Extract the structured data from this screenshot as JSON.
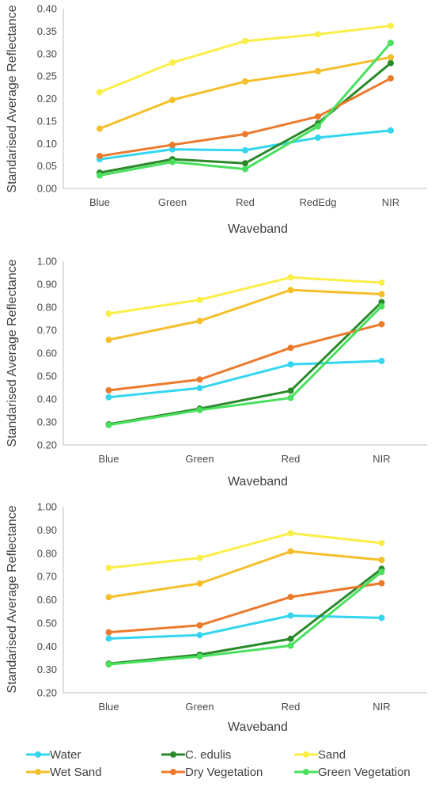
{
  "legend": [
    {
      "name": "Water",
      "color": "#33d6ee"
    },
    {
      "name": "C. edulis",
      "color": "#2a8a2a"
    },
    {
      "name": "Sand",
      "color": "#fbee47"
    },
    {
      "name": "Wet Sand",
      "color": "#f5bf2a"
    },
    {
      "name": "Dry Vegetation",
      "color": "#ec7a2c"
    },
    {
      "name": "Green Vegetation",
      "color": "#49e05e"
    }
  ],
  "chart_data": [
    {
      "type": "line",
      "xlabel": "Waveband",
      "ylabel": "Standarised Average Reflectance",
      "ylim": [
        0.0,
        0.4
      ],
      "ytick_step": 0.05,
      "ytick_labels": [
        "0.00",
        "0.05",
        "0.10",
        "0.15",
        "0.20",
        "0.25",
        "0.30",
        "0.35",
        "0.40"
      ],
      "grid": false,
      "categories": [
        "Blue",
        "Green",
        "Red",
        "RedEdg",
        "NIR"
      ],
      "series": [
        {
          "name": "Water",
          "values": [
            0.065,
            0.087,
            0.085,
            0.113,
            0.129
          ]
        },
        {
          "name": "C. edulis",
          "values": [
            0.035,
            0.065,
            0.056,
            0.145,
            0.279
          ]
        },
        {
          "name": "Sand",
          "values": [
            0.214,
            0.28,
            0.328,
            0.343,
            0.362
          ]
        },
        {
          "name": "Wet Sand",
          "values": [
            0.133,
            0.197,
            0.238,
            0.261,
            0.292
          ]
        },
        {
          "name": "Dry Vegetation",
          "values": [
            0.072,
            0.097,
            0.121,
            0.16,
            0.245
          ]
        },
        {
          "name": "Green Vegetation",
          "values": [
            0.029,
            0.059,
            0.043,
            0.138,
            0.324
          ]
        }
      ]
    },
    {
      "type": "line",
      "xlabel": "Waveband",
      "ylabel": "Standarised Average Reflectance",
      "ylim": [
        0.2,
        1.0
      ],
      "ytick_step": 0.1,
      "ytick_labels": [
        "0.20",
        "0.30",
        "0.40",
        "0.50",
        "0.60",
        "0.70",
        "0.80",
        "0.90",
        "1.00"
      ],
      "grid": false,
      "categories": [
        "Blue",
        "Green",
        "Red",
        "NIR"
      ],
      "series": [
        {
          "name": "Water",
          "values": [
            0.408,
            0.448,
            0.551,
            0.566
          ]
        },
        {
          "name": "C. edulis",
          "values": [
            0.29,
            0.358,
            0.436,
            0.822
          ]
        },
        {
          "name": "Sand",
          "values": [
            0.772,
            0.832,
            0.93,
            0.907
          ]
        },
        {
          "name": "Wet Sand",
          "values": [
            0.658,
            0.74,
            0.875,
            0.857
          ]
        },
        {
          "name": "Dry Vegetation",
          "values": [
            0.438,
            0.485,
            0.623,
            0.726
          ]
        },
        {
          "name": "Green Vegetation",
          "values": [
            0.287,
            0.352,
            0.405,
            0.804
          ]
        }
      ]
    },
    {
      "type": "line",
      "xlabel": "Waveband",
      "ylabel": "Standarised Average Reflectance",
      "ylim": [
        0.2,
        1.0
      ],
      "ytick_step": 0.1,
      "ytick_labels": [
        "0.20",
        "0.30",
        "0.40",
        "0.50",
        "0.60",
        "0.70",
        "0.80",
        "0.90",
        "1.00"
      ],
      "grid": false,
      "categories": [
        "Blue",
        "Green",
        "Red",
        "NIR"
      ],
      "series": [
        {
          "name": "Water",
          "values": [
            0.433,
            0.448,
            0.532,
            0.522
          ]
        },
        {
          "name": "C. edulis",
          "values": [
            0.325,
            0.364,
            0.432,
            0.733
          ]
        },
        {
          "name": "Sand",
          "values": [
            0.737,
            0.78,
            0.886,
            0.844
          ]
        },
        {
          "name": "Wet Sand",
          "values": [
            0.611,
            0.67,
            0.808,
            0.771
          ]
        },
        {
          "name": "Dry Vegetation",
          "values": [
            0.46,
            0.49,
            0.612,
            0.671
          ]
        },
        {
          "name": "Green Vegetation",
          "values": [
            0.322,
            0.356,
            0.403,
            0.72
          ]
        }
      ]
    }
  ]
}
